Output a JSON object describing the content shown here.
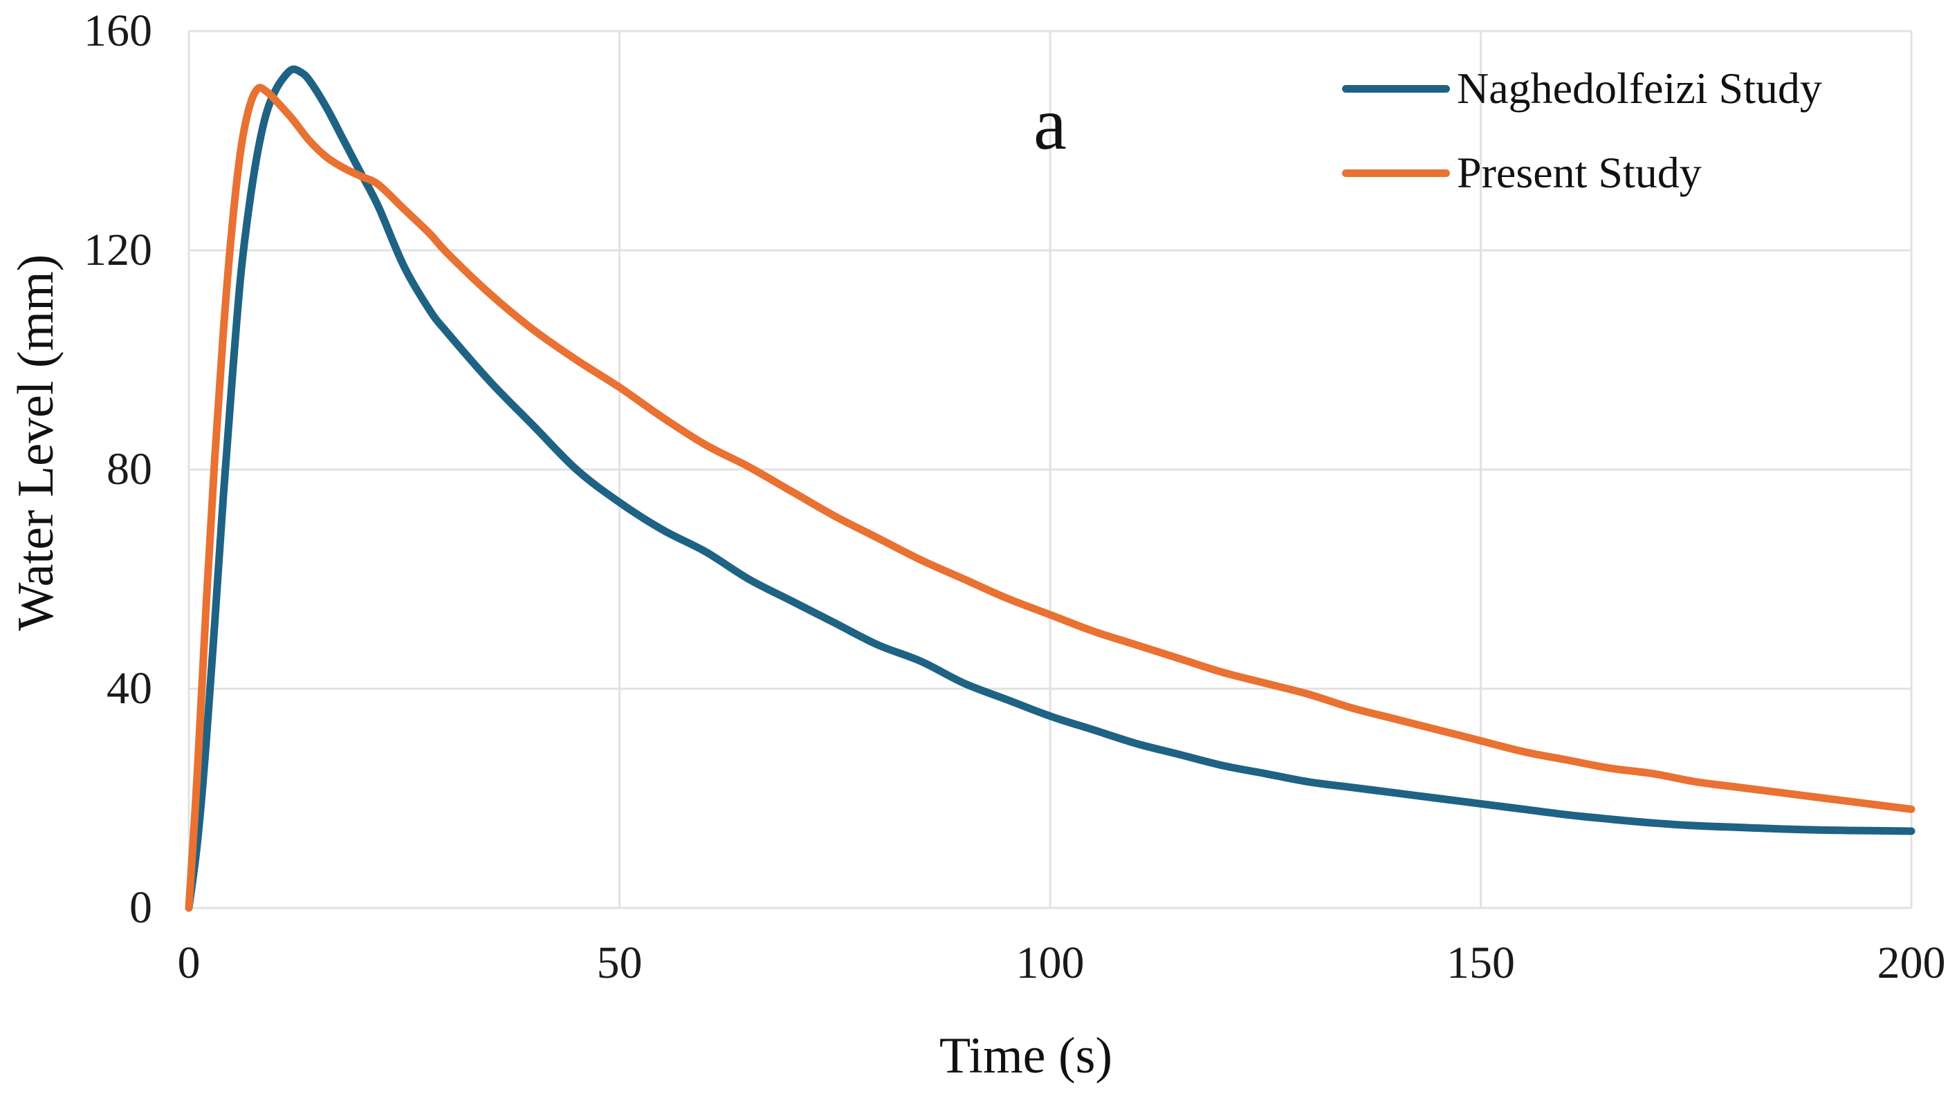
{
  "figure": {
    "annotation": "a",
    "x_axis": {
      "title": "Time (s)"
    },
    "y_axis": {
      "title": "Water Level (mm)"
    },
    "legend_items": [
      {
        "label": "Naghedolfeizi Study",
        "color": "#1E6284"
      },
      {
        "label": "Present Study",
        "color": "#E97132"
      }
    ]
  },
  "chart_data": {
    "type": "line",
    "title": "",
    "xlabel": "Time (s)",
    "ylabel": "Water Level (mm)",
    "xlim": [
      0,
      200
    ],
    "ylim": [
      0,
      160
    ],
    "xticks": [
      0,
      50,
      100,
      150,
      200
    ],
    "yticks": [
      0,
      40,
      80,
      120,
      160
    ],
    "grid": true,
    "grid_color": "#E2E2E2",
    "text_color": "#1a1a1a",
    "legend_position": "top-right",
    "annotation": {
      "text": "a",
      "x": 100,
      "y": 143
    },
    "series": [
      {
        "name": "Naghedolfeizi Study",
        "color": "#1E6284",
        "points": [
          [
            0,
            0
          ],
          [
            1,
            12
          ],
          [
            2,
            30
          ],
          [
            3,
            52
          ],
          [
            4,
            75
          ],
          [
            5,
            96
          ],
          [
            6,
            115
          ],
          [
            7,
            128
          ],
          [
            8,
            138
          ],
          [
            9,
            145
          ],
          [
            10,
            149
          ],
          [
            11,
            151.5
          ],
          [
            12,
            153
          ],
          [
            13,
            152.5
          ],
          [
            14,
            151
          ],
          [
            16,
            146
          ],
          [
            18,
            140
          ],
          [
            20,
            134
          ],
          [
            22,
            128
          ],
          [
            25,
            117
          ],
          [
            28,
            109
          ],
          [
            30,
            105
          ],
          [
            35,
            96
          ],
          [
            40,
            88
          ],
          [
            45,
            80
          ],
          [
            50,
            74
          ],
          [
            55,
            69
          ],
          [
            60,
            65
          ],
          [
            65,
            60
          ],
          [
            70,
            56
          ],
          [
            75,
            52
          ],
          [
            80,
            48
          ],
          [
            85,
            45
          ],
          [
            90,
            41
          ],
          [
            95,
            38
          ],
          [
            100,
            35
          ],
          [
            105,
            32.5
          ],
          [
            110,
            30
          ],
          [
            115,
            28
          ],
          [
            120,
            26
          ],
          [
            125,
            24.5
          ],
          [
            130,
            23
          ],
          [
            135,
            22
          ],
          [
            140,
            21
          ],
          [
            145,
            20
          ],
          [
            150,
            19
          ],
          [
            155,
            18
          ],
          [
            160,
            17
          ],
          [
            165,
            16.2
          ],
          [
            170,
            15.5
          ],
          [
            175,
            15
          ],
          [
            180,
            14.7
          ],
          [
            185,
            14.4
          ],
          [
            190,
            14.2
          ],
          [
            195,
            14.1
          ],
          [
            200,
            14
          ]
        ]
      },
      {
        "name": "Present Study",
        "color": "#E97132",
        "points": [
          [
            0,
            0
          ],
          [
            1,
            25
          ],
          [
            2,
            55
          ],
          [
            3,
            82
          ],
          [
            4,
            105
          ],
          [
            5,
            124
          ],
          [
            6,
            138
          ],
          [
            7,
            146
          ],
          [
            8,
            149.5
          ],
          [
            9,
            149
          ],
          [
            10,
            147.5
          ],
          [
            12,
            144
          ],
          [
            14,
            140
          ],
          [
            16,
            137
          ],
          [
            18,
            135
          ],
          [
            20,
            133.5
          ],
          [
            22,
            132
          ],
          [
            25,
            127.5
          ],
          [
            28,
            123
          ],
          [
            30,
            119.5
          ],
          [
            35,
            112
          ],
          [
            40,
            105.5
          ],
          [
            45,
            100
          ],
          [
            50,
            95
          ],
          [
            55,
            89.5
          ],
          [
            60,
            84.5
          ],
          [
            65,
            80.5
          ],
          [
            70,
            76
          ],
          [
            75,
            71.5
          ],
          [
            80,
            67.5
          ],
          [
            85,
            63.5
          ],
          [
            90,
            60
          ],
          [
            95,
            56.5
          ],
          [
            100,
            53.5
          ],
          [
            105,
            50.5
          ],
          [
            110,
            48
          ],
          [
            115,
            45.5
          ],
          [
            120,
            43
          ],
          [
            125,
            41
          ],
          [
            130,
            39
          ],
          [
            135,
            36.5
          ],
          [
            140,
            34.5
          ],
          [
            145,
            32.5
          ],
          [
            150,
            30.5
          ],
          [
            155,
            28.5
          ],
          [
            160,
            27
          ],
          [
            165,
            25.5
          ],
          [
            170,
            24.5
          ],
          [
            175,
            23
          ],
          [
            180,
            22
          ],
          [
            185,
            21
          ],
          [
            190,
            20
          ],
          [
            195,
            19
          ],
          [
            200,
            18
          ]
        ]
      }
    ]
  }
}
